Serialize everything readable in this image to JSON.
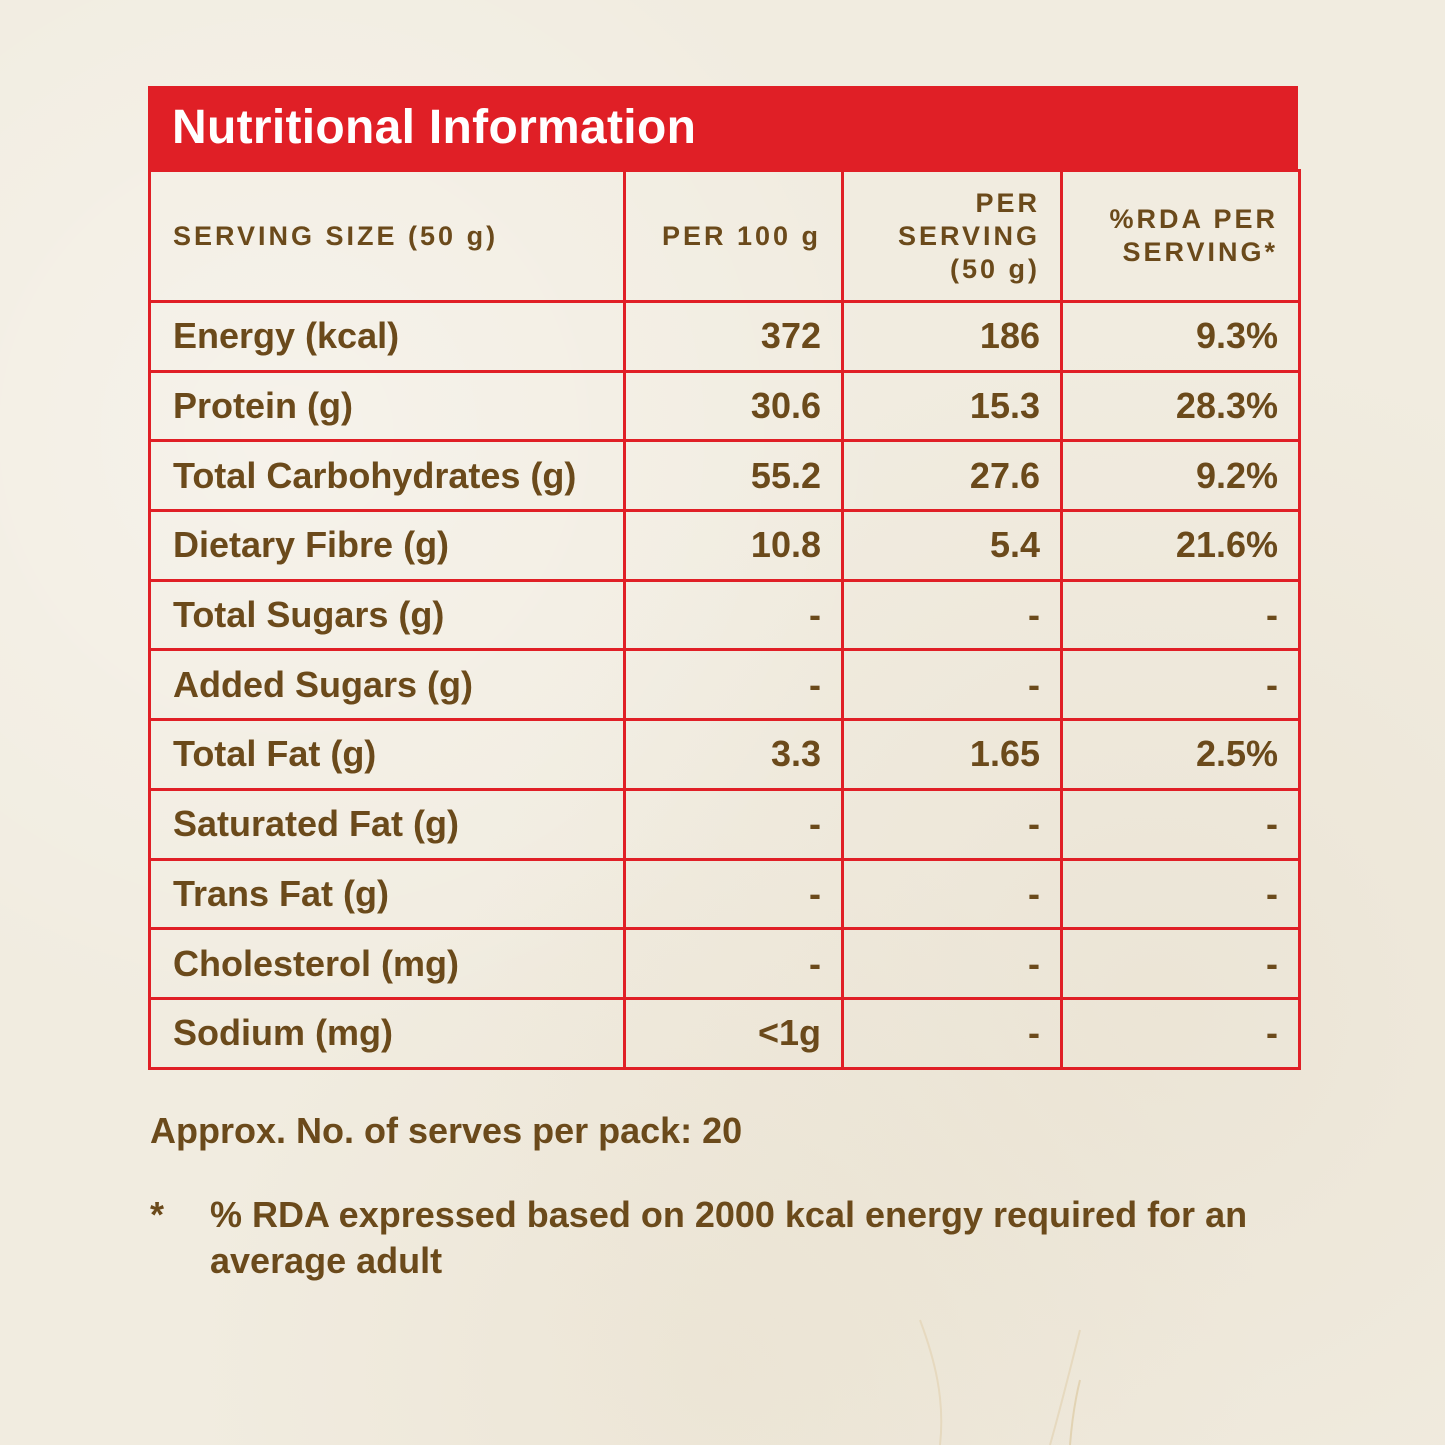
{
  "title": "Nutritional Information",
  "headers": {
    "serving": "SERVING SIZE (50 g)",
    "per100": "PER 100 g",
    "per_serving_line1": "PER",
    "per_serving_line2": "SERVING",
    "per_serving_line3": "(50 g)",
    "rda_line1": "%RDA PER",
    "rda_line2": "SERVING*"
  },
  "rows": [
    {
      "name": "Energy (kcal)",
      "per100": "372",
      "serving": "186",
      "rda": "9.3%"
    },
    {
      "name": "Protein (g)",
      "per100": "30.6",
      "serving": "15.3",
      "rda": "28.3%"
    },
    {
      "name": "Total Carbohydrates (g)",
      "per100": "55.2",
      "serving": "27.6",
      "rda": "9.2%"
    },
    {
      "name": "Dietary Fibre (g)",
      "per100": "10.8",
      "serving": "5.4",
      "rda": "21.6%"
    },
    {
      "name": "Total Sugars (g)",
      "per100": "-",
      "serving": "-",
      "rda": "-"
    },
    {
      "name": "Added Sugars (g)",
      "per100": "-",
      "serving": "-",
      "rda": "-"
    },
    {
      "name": "Total Fat (g)",
      "per100": "3.3",
      "serving": "1.65",
      "rda": "2.5%"
    },
    {
      "name": "Saturated Fat (g)",
      "per100": "-",
      "serving": "-",
      "rda": "-"
    },
    {
      "name": "Trans Fat (g)",
      "per100": "-",
      "serving": "-",
      "rda": "-"
    },
    {
      "name": "Cholesterol (mg)",
      "per100": "-",
      "serving": "-",
      "rda": "-"
    },
    {
      "name": "Sodium (mg)",
      "per100": "<1g",
      "serving": "-",
      "rda": "-"
    }
  ],
  "serves_text": "Approx. No. of serves per pack: 20",
  "footnote": {
    "star": "*",
    "text": "% RDA expressed based on 2000 kcal energy required for an average adult"
  },
  "colors": {
    "accent": "#e01f26",
    "text": "#6b4a1b",
    "background": "#f1ece0"
  }
}
